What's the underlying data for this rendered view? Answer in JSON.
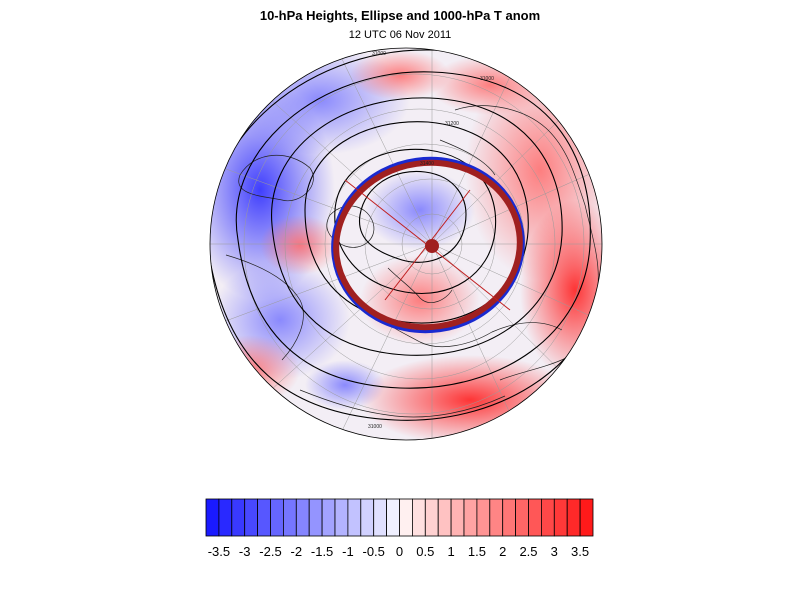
{
  "title": "10-hPa Heights, Ellipse and 1000-hPa T anom",
  "subtitle": "12 UTC 06 Nov 2011",
  "contour_labels": [
    "31000",
    "31000",
    "31200",
    "31400",
    "31000"
  ],
  "colorbar": {
    "min": -3.75,
    "max": 3.75,
    "step": 0.25,
    "tick_labels": [
      "-3.5",
      "-3",
      "-2.5",
      "-2",
      "-1.5",
      "-1",
      "-0.5",
      "0",
      "0.5",
      "1",
      "1.5",
      "2",
      "2.5",
      "3",
      "3.5"
    ],
    "tick_values": [
      -3.5,
      -3,
      -2.5,
      -2,
      -1.5,
      -1,
      -0.5,
      0,
      0.5,
      1,
      1.5,
      2,
      2.5,
      3,
      3.5
    ],
    "negative_color": "#1a1aff",
    "positive_color": "#ff1a1a",
    "neutral_color": "#ffffff"
  },
  "ellipse": {
    "color": "#a02020",
    "inner_edge_color": "#1a2ad0"
  }
}
